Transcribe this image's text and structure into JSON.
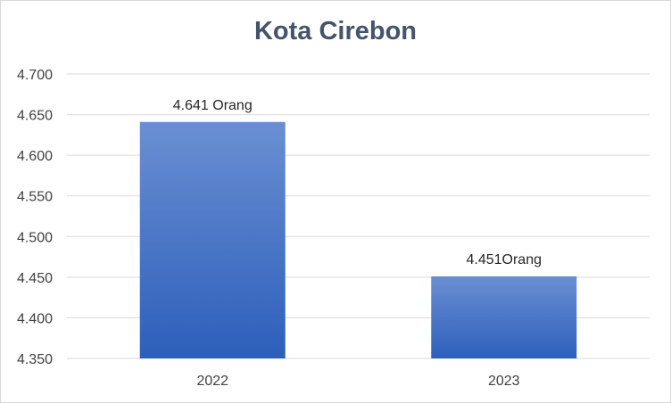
{
  "chart_data": {
    "type": "bar",
    "title": "Kota Cirebon",
    "categories": [
      "2022",
      "2023"
    ],
    "values": [
      4641,
      4451
    ],
    "data_labels": [
      "4.641 Orang",
      "4.451Orang"
    ],
    "ylim": [
      4350,
      4700
    ],
    "y_ticks": [
      4350,
      4400,
      4450,
      4500,
      4550,
      4600,
      4650,
      4700
    ],
    "y_tick_labels": [
      "4.350",
      "4.400",
      "4.450",
      "4.500",
      "4.550",
      "4.600",
      "4.650",
      "4.700"
    ],
    "xlabel": "",
    "ylabel": "",
    "grid": true,
    "legend": "none",
    "colors": {
      "bar_top": "#6a8fd3",
      "bar_bottom": "#2d5fba",
      "grid": "#d9d9d9",
      "title": "#44546a"
    }
  }
}
